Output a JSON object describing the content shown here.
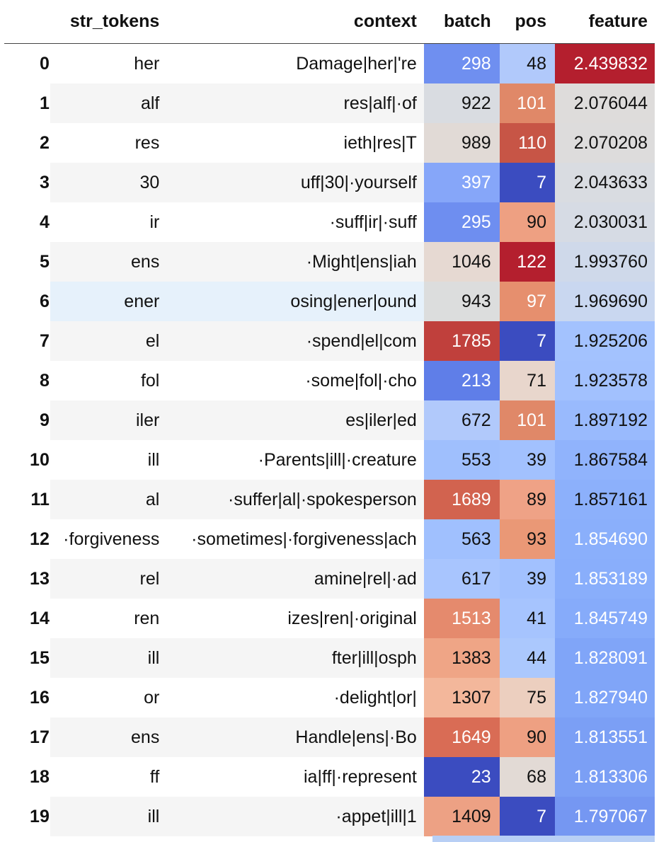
{
  "columns": {
    "index": "",
    "str_tokens": "str_tokens",
    "context": "context",
    "batch": "batch",
    "pos": "pos",
    "feature": "feature"
  },
  "hovered_row": 6,
  "rows": [
    {
      "idx": "0",
      "tok": "her",
      "ctx": "Damage|her|'re",
      "batch": "298",
      "pos": "48",
      "feat": "2.439832",
      "batch_bg": "#6f8ff0",
      "batch_fg": "#ffffff",
      "pos_bg": "#b1c9fb",
      "pos_fg": "#111111",
      "feat_bg": "#b41f2e",
      "feat_fg": "#ffffff"
    },
    {
      "idx": "1",
      "tok": "alf",
      "ctx": "res|alf|·of",
      "batch": "922",
      "pos": "101",
      "feat": "2.076044",
      "batch_bg": "#d9dce1",
      "batch_fg": "#111111",
      "pos_bg": "#e08868",
      "pos_fg": "#ffffff",
      "feat_bg": "#dedcdb",
      "feat_fg": "#111111"
    },
    {
      "idx": "2",
      "tok": "res",
      "ctx": "ieth|res|T",
      "batch": "989",
      "pos": "110",
      "feat": "2.070208",
      "batch_bg": "#e1dad6",
      "batch_fg": "#111111",
      "pos_bg": "#c75546",
      "pos_fg": "#ffffff",
      "feat_bg": "#dddcdc",
      "feat_fg": "#111111"
    },
    {
      "idx": "3",
      "tok": "30",
      "ctx": "uff|30|·yourself",
      "batch": "397",
      "pos": "7",
      "feat": "2.043633",
      "batch_bg": "#86a6f9",
      "batch_fg": "#ffffff",
      "pos_bg": "#3b4cc0",
      "pos_fg": "#ffffff",
      "feat_bg": "#d9dce1",
      "feat_fg": "#111111"
    },
    {
      "idx": "4",
      "tok": "ir",
      "ctx": "·suff|ir|·suff",
      "batch": "295",
      "pos": "90",
      "feat": "2.030031",
      "batch_bg": "#6e8ef0",
      "batch_fg": "#ffffff",
      "pos_bg": "#eea082",
      "pos_fg": "#111111",
      "feat_bg": "#d6dbe4",
      "feat_fg": "#111111"
    },
    {
      "idx": "5",
      "tok": "ens",
      "ctx": "·Might|ens|iah",
      "batch": "1046",
      "pos": "122",
      "feat": "1.993760",
      "batch_bg": "#e6d9d2",
      "batch_fg": "#111111",
      "pos_bg": "#b41f2e",
      "pos_fg": "#ffffff",
      "feat_bg": "#cfd9ea",
      "feat_fg": "#111111"
    },
    {
      "idx": "6",
      "tok": "ener",
      "ctx": "osing|ener|ound",
      "batch": "943",
      "pos": "97",
      "feat": "1.969690",
      "batch_bg": "#dcdddd",
      "batch_fg": "#111111",
      "pos_bg": "#e68f6e",
      "pos_fg": "#ffffff",
      "feat_bg": "#c9d7f0",
      "feat_fg": "#111111"
    },
    {
      "idx": "7",
      "tok": "el",
      "ctx": "·spend|el|com",
      "batch": "1785",
      "pos": "7",
      "feat": "1.925206",
      "batch_bg": "#c0403c",
      "batch_fg": "#ffffff",
      "pos_bg": "#3b4cc0",
      "pos_fg": "#ffffff",
      "feat_bg": "#a3c2fe",
      "feat_fg": "#111111"
    },
    {
      "idx": "8",
      "tok": "fol",
      "ctx": "·some|fol|·cho",
      "batch": "213",
      "pos": "71",
      "feat": "1.923578",
      "batch_bg": "#5f7ee8",
      "batch_fg": "#ffffff",
      "pos_bg": "#e8d6cc",
      "pos_fg": "#111111",
      "feat_bg": "#a2c1fe",
      "feat_fg": "#111111"
    },
    {
      "idx": "9",
      "tok": "iler",
      "ctx": "es|iler|ed",
      "batch": "672",
      "pos": "101",
      "feat": "1.897192",
      "batch_bg": "#b1c9fb",
      "batch_fg": "#111111",
      "pos_bg": "#e08868",
      "pos_fg": "#ffffff",
      "feat_bg": "#99bafd",
      "feat_fg": "#111111"
    },
    {
      "idx": "10",
      "tok": "ill",
      "ctx": "·Parents|ill|·creature",
      "batch": "553",
      "pos": "39",
      "feat": "1.867584",
      "batch_bg": "#9fbffd",
      "batch_fg": "#111111",
      "pos_bg": "#a2c1fe",
      "pos_fg": "#111111",
      "feat_bg": "#90b3fc",
      "feat_fg": "#111111"
    },
    {
      "idx": "11",
      "tok": "al",
      "ctx": "·suffer|al|·spokesperson",
      "batch": "1689",
      "pos": "89",
      "feat": "1.857161",
      "batch_bg": "#d2634f",
      "batch_fg": "#ffffff",
      "pos_bg": "#efa286",
      "pos_fg": "#111111",
      "feat_bg": "#8cb0fb",
      "feat_fg": "#111111"
    },
    {
      "idx": "12",
      "tok": "·forgiveness",
      "ctx": "·sometimes|·forgiveness|ach",
      "batch": "563",
      "pos": "93",
      "feat": "1.854690",
      "batch_bg": "#a0c0fe",
      "batch_fg": "#111111",
      "pos_bg": "#ea9876",
      "pos_fg": "#111111",
      "feat_bg": "#8aaffb",
      "feat_fg": "#ffffff"
    },
    {
      "idx": "13",
      "tok": "rel",
      "ctx": "amine|rel|·ad",
      "batch": "617",
      "pos": "39",
      "feat": "1.853189",
      "batch_bg": "#a8c5fe",
      "batch_fg": "#111111",
      "pos_bg": "#a2c1fe",
      "pos_fg": "#111111",
      "feat_bg": "#89aefb",
      "feat_fg": "#ffffff"
    },
    {
      "idx": "14",
      "tok": "ren",
      "ctx": "izes|ren|·original",
      "batch": "1513",
      "pos": "41",
      "feat": "1.845749",
      "batch_bg": "#e58a6d",
      "batch_fg": "#ffffff",
      "pos_bg": "#a6c4fe",
      "pos_fg": "#111111",
      "feat_bg": "#86abfa",
      "feat_fg": "#ffffff"
    },
    {
      "idx": "15",
      "tok": "ill",
      "ctx": "fter|ill|osph",
      "batch": "1383",
      "pos": "44",
      "feat": "1.828091",
      "batch_bg": "#efa586",
      "batch_fg": "#111111",
      "pos_bg": "#abc8fd",
      "pos_fg": "#111111",
      "feat_bg": "#80a5f8",
      "feat_fg": "#ffffff"
    },
    {
      "idx": "16",
      "tok": "or",
      "ctx": "·delight|or|",
      "batch": "1307",
      "pos": "75",
      "feat": "1.827940",
      "batch_bg": "#f3b79b",
      "batch_fg": "#111111",
      "pos_bg": "#eccfbf",
      "pos_fg": "#111111",
      "feat_bg": "#80a5f8",
      "feat_fg": "#ffffff"
    },
    {
      "idx": "17",
      "tok": "ens",
      "ctx": "Handle|ens|·Bo",
      "batch": "1649",
      "pos": "90",
      "feat": "1.813551",
      "batch_bg": "#d96c55",
      "batch_fg": "#ffffff",
      "pos_bg": "#eea082",
      "pos_fg": "#111111",
      "feat_bg": "#7b9ff5",
      "feat_fg": "#ffffff"
    },
    {
      "idx": "18",
      "tok": "ff",
      "ctx": "ia|ff|·represent",
      "batch": "23",
      "pos": "68",
      "feat": "1.813306",
      "batch_bg": "#3b4cc0",
      "batch_fg": "#ffffff",
      "pos_bg": "#e2dad5",
      "pos_fg": "#111111",
      "feat_bg": "#7b9ff5",
      "feat_fg": "#ffffff"
    },
    {
      "idx": "19",
      "tok": "ill",
      "ctx": "·appet|ill|1",
      "batch": "1409",
      "pos": "7",
      "feat": "1.797067",
      "batch_bg": "#eda184",
      "batch_fg": "#111111",
      "pos_bg": "#3b4cc0",
      "pos_fg": "#ffffff",
      "feat_bg": "#7597f2",
      "feat_fg": "#ffffff"
    }
  ]
}
